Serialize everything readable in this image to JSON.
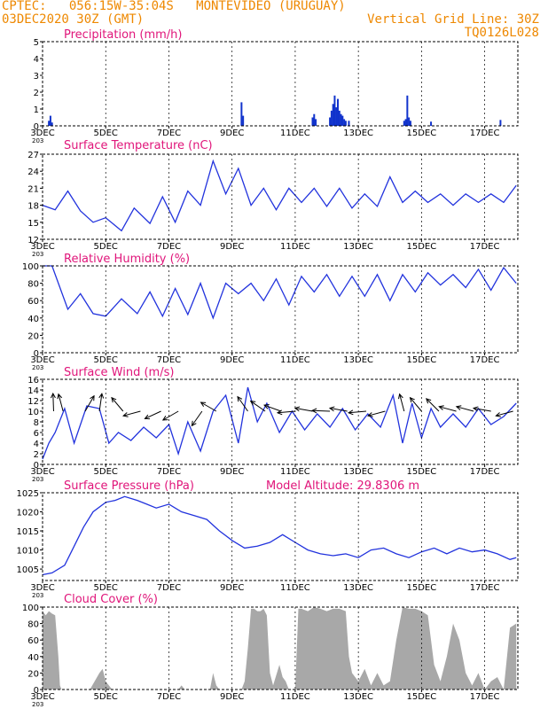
{
  "header": {
    "line1": "CPTEC:   056:15W-35:04S   MONTEVIDEO (URUGUAY)",
    "line2_left": "03DEC2020 30Z (GMT)",
    "line2_right": "Vertical Grid Line: 30Z",
    "line3_right": "TQ0126L028"
  },
  "colors": {
    "header": "#ee8800",
    "title": "#e0157a",
    "line": "#2233dd",
    "bar": "#1133cc",
    "cloud": "#a8a8a8",
    "arrow": "#000000"
  },
  "x_axis": {
    "day_start": 3,
    "day_end": 18.05,
    "tick_days": [
      3,
      5,
      7,
      9,
      11,
      13,
      15,
      17
    ],
    "tick_labels": [
      "3DEC",
      "5DEC",
      "7DEC",
      "9DEC",
      "11DEC",
      "13DEC",
      "15DEC",
      "17DEC"
    ],
    "corner_label": "203"
  },
  "chart_data": [
    {
      "type": "bar",
      "title": "Precipitation (mm/h)",
      "ylim": [
        0,
        5
      ],
      "yticks": [
        0,
        1,
        2,
        3,
        4,
        5
      ],
      "x": [
        3.2,
        3.25,
        3.3,
        9.3,
        9.35,
        11.55,
        11.6,
        11.65,
        12.1,
        12.15,
        12.2,
        12.25,
        12.3,
        12.35,
        12.4,
        12.45,
        12.5,
        12.55,
        12.6,
        12.7,
        14.45,
        14.5,
        14.55,
        14.6,
        14.65,
        15.3,
        17.5
      ],
      "values": [
        0.3,
        0.6,
        0.2,
        1.4,
        0.6,
        0.5,
        0.7,
        0.4,
        0.5,
        0.9,
        1.3,
        1.8,
        1.1,
        1.6,
        0.9,
        0.7,
        0.6,
        0.4,
        0.3,
        0.3,
        0.3,
        0.4,
        1.8,
        0.5,
        0.3,
        0.25,
        0.35
      ]
    },
    {
      "type": "line",
      "title": "Surface Temperature (nC)",
      "ylim": [
        12,
        27
      ],
      "yticks": [
        12,
        15,
        18,
        21,
        24,
        27
      ],
      "x": [
        3.0,
        3.4,
        3.8,
        4.2,
        4.6,
        5.0,
        5.5,
        5.9,
        6.4,
        6.8,
        7.2,
        7.6,
        8.0,
        8.4,
        8.8,
        9.2,
        9.6,
        10.0,
        10.4,
        10.8,
        11.2,
        11.6,
        12.0,
        12.4,
        12.8,
        13.2,
        13.6,
        14.0,
        14.4,
        14.8,
        15.2,
        15.6,
        16.0,
        16.4,
        16.8,
        17.2,
        17.6,
        18.0
      ],
      "values": [
        18.0,
        17.2,
        20.5,
        17.0,
        15.0,
        15.8,
        13.5,
        17.5,
        14.8,
        19.5,
        15.0,
        20.5,
        18.0,
        25.8,
        20.0,
        24.5,
        18.0,
        21.0,
        17.2,
        21.0,
        18.5,
        21.0,
        17.8,
        21.0,
        17.5,
        20.0,
        17.8,
        23.0,
        18.5,
        20.5,
        18.5,
        20.0,
        18.0,
        20.0,
        18.5,
        20.0,
        18.5,
        21.5
      ]
    },
    {
      "type": "line",
      "title": "Relative Humidity (%)",
      "ylim": [
        0,
        100
      ],
      "yticks": [
        0,
        20,
        40,
        60,
        80,
        100
      ],
      "x": [
        3.0,
        3.3,
        3.8,
        4.2,
        4.6,
        5.0,
        5.5,
        6.0,
        6.4,
        6.8,
        7.2,
        7.6,
        8.0,
        8.4,
        8.8,
        9.2,
        9.6,
        10.0,
        10.4,
        10.8,
        11.2,
        11.6,
        12.0,
        12.4,
        12.8,
        13.2,
        13.6,
        14.0,
        14.4,
        14.8,
        15.2,
        15.6,
        16.0,
        16.4,
        16.8,
        17.2,
        17.6,
        18.0
      ],
      "values": [
        100,
        100,
        50,
        68,
        45,
        42,
        62,
        45,
        70,
        42,
        74,
        44,
        80,
        40,
        80,
        68,
        80,
        60,
        85,
        55,
        88,
        70,
        90,
        65,
        88,
        65,
        90,
        60,
        90,
        70,
        92,
        78,
        90,
        75,
        96,
        72,
        98,
        80
      ]
    },
    {
      "type": "line",
      "title": "Surface Wind (m/s)",
      "ylim": [
        0,
        16
      ],
      "yticks": [
        0,
        2,
        4,
        6,
        8,
        10,
        12,
        14,
        16
      ],
      "x": [
        3.0,
        3.2,
        3.4,
        3.7,
        4.0,
        4.4,
        4.8,
        5.1,
        5.4,
        5.8,
        6.2,
        6.6,
        7.0,
        7.3,
        7.6,
        8.0,
        8.4,
        8.8,
        9.2,
        9.5,
        9.8,
        10.1,
        10.5,
        10.9,
        11.3,
        11.7,
        12.1,
        12.5,
        12.9,
        13.3,
        13.7,
        14.1,
        14.4,
        14.7,
        15.0,
        15.3,
        15.6,
        16.0,
        16.4,
        16.8,
        17.2,
        17.6,
        18.0
      ],
      "values": [
        1.0,
        4.0,
        6.0,
        10.5,
        4.0,
        11.0,
        10.5,
        4.0,
        6.0,
        4.5,
        7.0,
        5.0,
        7.5,
        2.0,
        8.0,
        2.5,
        10.0,
        13.0,
        4.0,
        14.5,
        8.0,
        11.5,
        6.0,
        10.0,
        6.5,
        9.5,
        7.0,
        10.5,
        6.5,
        9.5,
        7.0,
        13.0,
        4.0,
        11.5,
        5.0,
        10.5,
        7.0,
        9.5,
        7.0,
        10.5,
        7.5,
        9.0,
        11.5
      ],
      "arrows": [
        {
          "day": 3.35,
          "speed": 10,
          "dir_deg": 92
        },
        {
          "day": 3.65,
          "speed": 10,
          "dir_deg": 105
        },
        {
          "day": 4.35,
          "speed": 10,
          "dir_deg": 60
        },
        {
          "day": 4.8,
          "speed": 10,
          "dir_deg": 82
        },
        {
          "day": 5.55,
          "speed": 10,
          "dir_deg": 130
        },
        {
          "day": 6.1,
          "speed": 10,
          "dir_deg": 195
        },
        {
          "day": 6.75,
          "speed": 10,
          "dir_deg": 205
        },
        {
          "day": 7.3,
          "speed": 10,
          "dir_deg": 210
        },
        {
          "day": 8.05,
          "speed": 10,
          "dir_deg": 235
        },
        {
          "day": 8.5,
          "speed": 10,
          "dir_deg": 150
        },
        {
          "day": 9.5,
          "speed": 10,
          "dir_deg": 125
        },
        {
          "day": 10.05,
          "speed": 10,
          "dir_deg": 145
        },
        {
          "day": 10.55,
          "speed": 10,
          "dir_deg": 160
        },
        {
          "day": 11.0,
          "speed": 10,
          "dir_deg": 185
        },
        {
          "day": 11.55,
          "speed": 10,
          "dir_deg": 170
        },
        {
          "day": 12.1,
          "speed": 10,
          "dir_deg": 178
        },
        {
          "day": 12.65,
          "speed": 10,
          "dir_deg": 170
        },
        {
          "day": 13.25,
          "speed": 10,
          "dir_deg": 185
        },
        {
          "day": 13.85,
          "speed": 10,
          "dir_deg": 195
        },
        {
          "day": 14.45,
          "speed": 10,
          "dir_deg": 105
        },
        {
          "day": 15.0,
          "speed": 10,
          "dir_deg": 130
        },
        {
          "day": 15.55,
          "speed": 10,
          "dir_deg": 135
        },
        {
          "day": 16.1,
          "speed": 10,
          "dir_deg": 165
        },
        {
          "day": 16.65,
          "speed": 10,
          "dir_deg": 165
        },
        {
          "day": 17.2,
          "speed": 10,
          "dir_deg": 170
        },
        {
          "day": 17.9,
          "speed": 10,
          "dir_deg": 195
        }
      ]
    },
    {
      "type": "line",
      "title": "Surface Pressure (hPa)",
      "subtitle": "Model Altitude: 29.8306 m",
      "ylim": [
        1002,
        1025
      ],
      "yticks": [
        1005,
        1010,
        1015,
        1020,
        1025
      ],
      "x": [
        3.0,
        3.3,
        3.7,
        4.0,
        4.3,
        4.6,
        5.0,
        5.3,
        5.6,
        6.0,
        6.3,
        6.6,
        7.0,
        7.4,
        7.8,
        8.2,
        8.6,
        9.0,
        9.4,
        9.8,
        10.2,
        10.6,
        11.0,
        11.4,
        11.8,
        12.2,
        12.6,
        13.0,
        13.4,
        13.8,
        14.2,
        14.6,
        15.0,
        15.4,
        15.8,
        16.2,
        16.6,
        17.0,
        17.4,
        17.8,
        18.0
      ],
      "values": [
        1003.5,
        1004.0,
        1006.0,
        1011.0,
        1016.0,
        1020.0,
        1022.5,
        1023.0,
        1024.0,
        1023.0,
        1022.0,
        1021.0,
        1022.0,
        1020.0,
        1019.0,
        1018.0,
        1015.0,
        1012.5,
        1010.5,
        1011.0,
        1012.0,
        1014.0,
        1012.0,
        1010.0,
        1009.0,
        1008.5,
        1009.0,
        1008.0,
        1010.0,
        1010.5,
        1009.0,
        1008.0,
        1009.5,
        1010.5,
        1009.0,
        1010.5,
        1009.5,
        1010.0,
        1009.0,
        1007.5,
        1008.0
      ]
    },
    {
      "type": "area",
      "title": "Cloud Cover (%)",
      "ylim": [
        0,
        100
      ],
      "yticks": [
        0,
        20,
        40,
        60,
        80,
        100
      ],
      "x": [
        3.0,
        3.1,
        3.2,
        3.3,
        3.4,
        3.5,
        3.55,
        3.6,
        4.0,
        4.5,
        4.8,
        4.9,
        5.0,
        5.2,
        5.4,
        5.6,
        6.0,
        7.0,
        7.3,
        7.4,
        7.5,
        8.0,
        8.3,
        8.4,
        8.5,
        8.6,
        9.0,
        9.3,
        9.4,
        9.5,
        9.6,
        9.7,
        9.8,
        9.9,
        10.0,
        10.1,
        10.2,
        10.3,
        10.5,
        10.6,
        10.7,
        10.8,
        11.0,
        11.1,
        11.2,
        11.4,
        11.6,
        11.8,
        12.0,
        12.2,
        12.4,
        12.6,
        12.7,
        12.8,
        13.0,
        13.2,
        13.4,
        13.6,
        13.8,
        14.0,
        14.2,
        14.4,
        14.6,
        14.8,
        15.0,
        15.2,
        15.4,
        15.6,
        15.8,
        16.0,
        16.2,
        16.4,
        16.6,
        16.8,
        17.0,
        17.2,
        17.4,
        17.6,
        17.8,
        18.0
      ],
      "values": [
        95,
        90,
        95,
        92,
        90,
        40,
        5,
        0,
        0,
        0,
        20,
        25,
        10,
        0,
        0,
        0,
        0,
        0,
        0,
        5,
        0,
        0,
        0,
        20,
        5,
        0,
        0,
        0,
        10,
        50,
        98,
        98,
        95,
        95,
        98,
        90,
        20,
        5,
        30,
        15,
        10,
        0,
        0,
        98,
        98,
        95,
        100,
        98,
        95,
        98,
        98,
        95,
        40,
        20,
        10,
        25,
        5,
        20,
        5,
        10,
        60,
        100,
        98,
        98,
        95,
        90,
        30,
        10,
        40,
        80,
        60,
        20,
        5,
        20,
        0,
        10,
        15,
        0,
        75,
        80
      ]
    }
  ]
}
